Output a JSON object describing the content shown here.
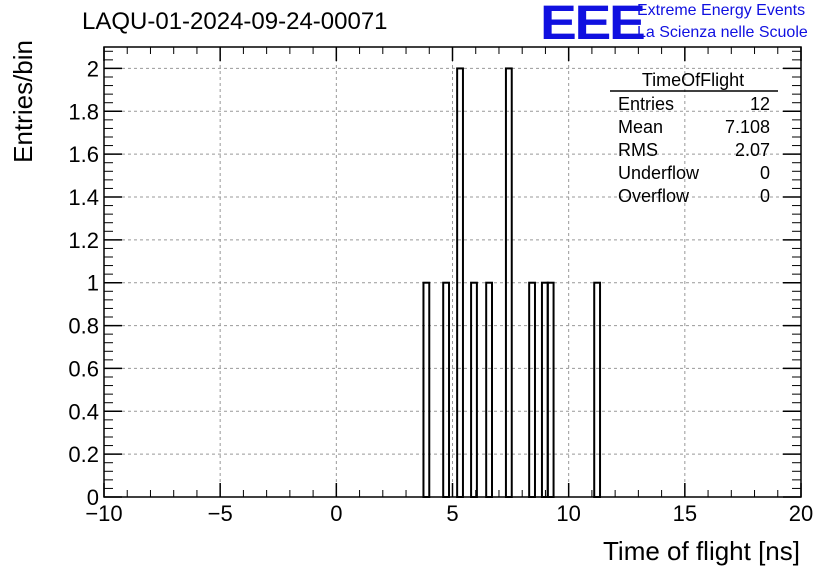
{
  "header": {
    "run_title": "LAQU-01-2024-09-24-00071",
    "logo_text": "EEE",
    "logo_line1": "Extreme Energy Events",
    "logo_line2": "La Scienza nelle Scuole"
  },
  "stats_box": {
    "title": "TimeOfFlight",
    "rows": [
      {
        "label": "Entries",
        "value": "12"
      },
      {
        "label": "Mean",
        "value": "7.108"
      },
      {
        "label": "RMS",
        "value": "2.07"
      },
      {
        "label": "Underflow",
        "value": "0"
      },
      {
        "label": "Overflow",
        "value": "0"
      }
    ]
  },
  "colors": {
    "accent": "#1010e0",
    "line": "#000000",
    "grid": "#999999"
  },
  "chart_data": {
    "type": "bar",
    "histogram": true,
    "xlabel": "Time of flight [ns]",
    "ylabel": "Entries/bin",
    "xlim": [
      -10,
      20
    ],
    "ylim": [
      0,
      2.1
    ],
    "grid": true,
    "x_ticks": [
      "−10",
      "−5",
      "0",
      "5",
      "10",
      "15",
      "20"
    ],
    "y_ticks": [
      "0",
      "0.2",
      "0.4",
      "0.6",
      "0.8",
      "1",
      "1.2",
      "1.4",
      "1.6",
      "1.8",
      "2"
    ],
    "bins": [
      {
        "low": 3.75,
        "high": 4.0,
        "count": 1
      },
      {
        "low": 4.6,
        "high": 4.85,
        "count": 1
      },
      {
        "low": 5.2,
        "high": 5.45,
        "count": 2
      },
      {
        "low": 5.8,
        "high": 6.05,
        "count": 1
      },
      {
        "low": 6.45,
        "high": 6.7,
        "count": 1
      },
      {
        "low": 7.3,
        "high": 7.55,
        "count": 2
      },
      {
        "low": 8.3,
        "high": 8.55,
        "count": 1
      },
      {
        "low": 8.85,
        "high": 9.1,
        "count": 1
      },
      {
        "low": 9.1,
        "high": 9.35,
        "count": 1
      },
      {
        "low": 11.1,
        "high": 11.35,
        "count": 1
      }
    ]
  }
}
